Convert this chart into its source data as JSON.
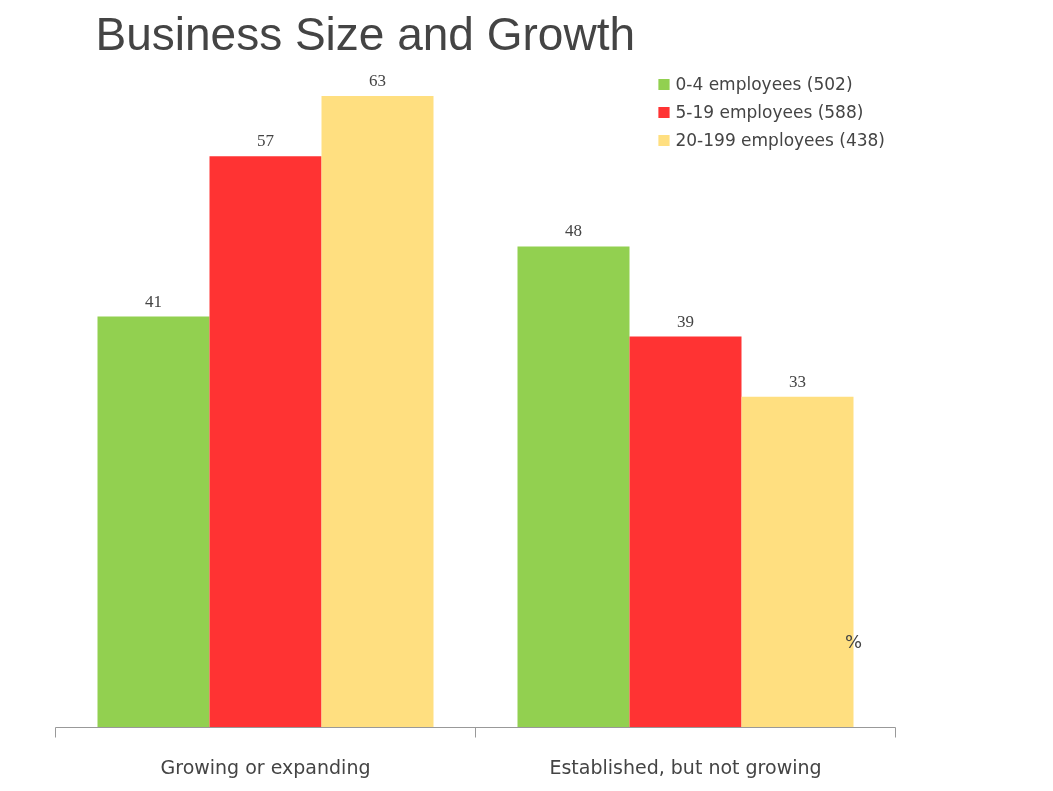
{
  "chart_data": {
    "type": "bar",
    "title": "Business Size and Growth",
    "categories": [
      "Growing or expanding",
      "Established, but not growing"
    ],
    "series": [
      {
        "name": "0-4 employees (502)",
        "color": "#92d050",
        "values": [
          41,
          48
        ]
      },
      {
        "name": "5-19 employees (588)",
        "color": "#ff3333",
        "values": [
          57,
          39
        ]
      },
      {
        "name": "20-199 employees (438)",
        "color": "#ffdf80",
        "values": [
          63,
          33
        ]
      }
    ],
    "data_labels": true,
    "legend": "top right",
    "grid": false,
    "annotations": [
      "%"
    ]
  }
}
